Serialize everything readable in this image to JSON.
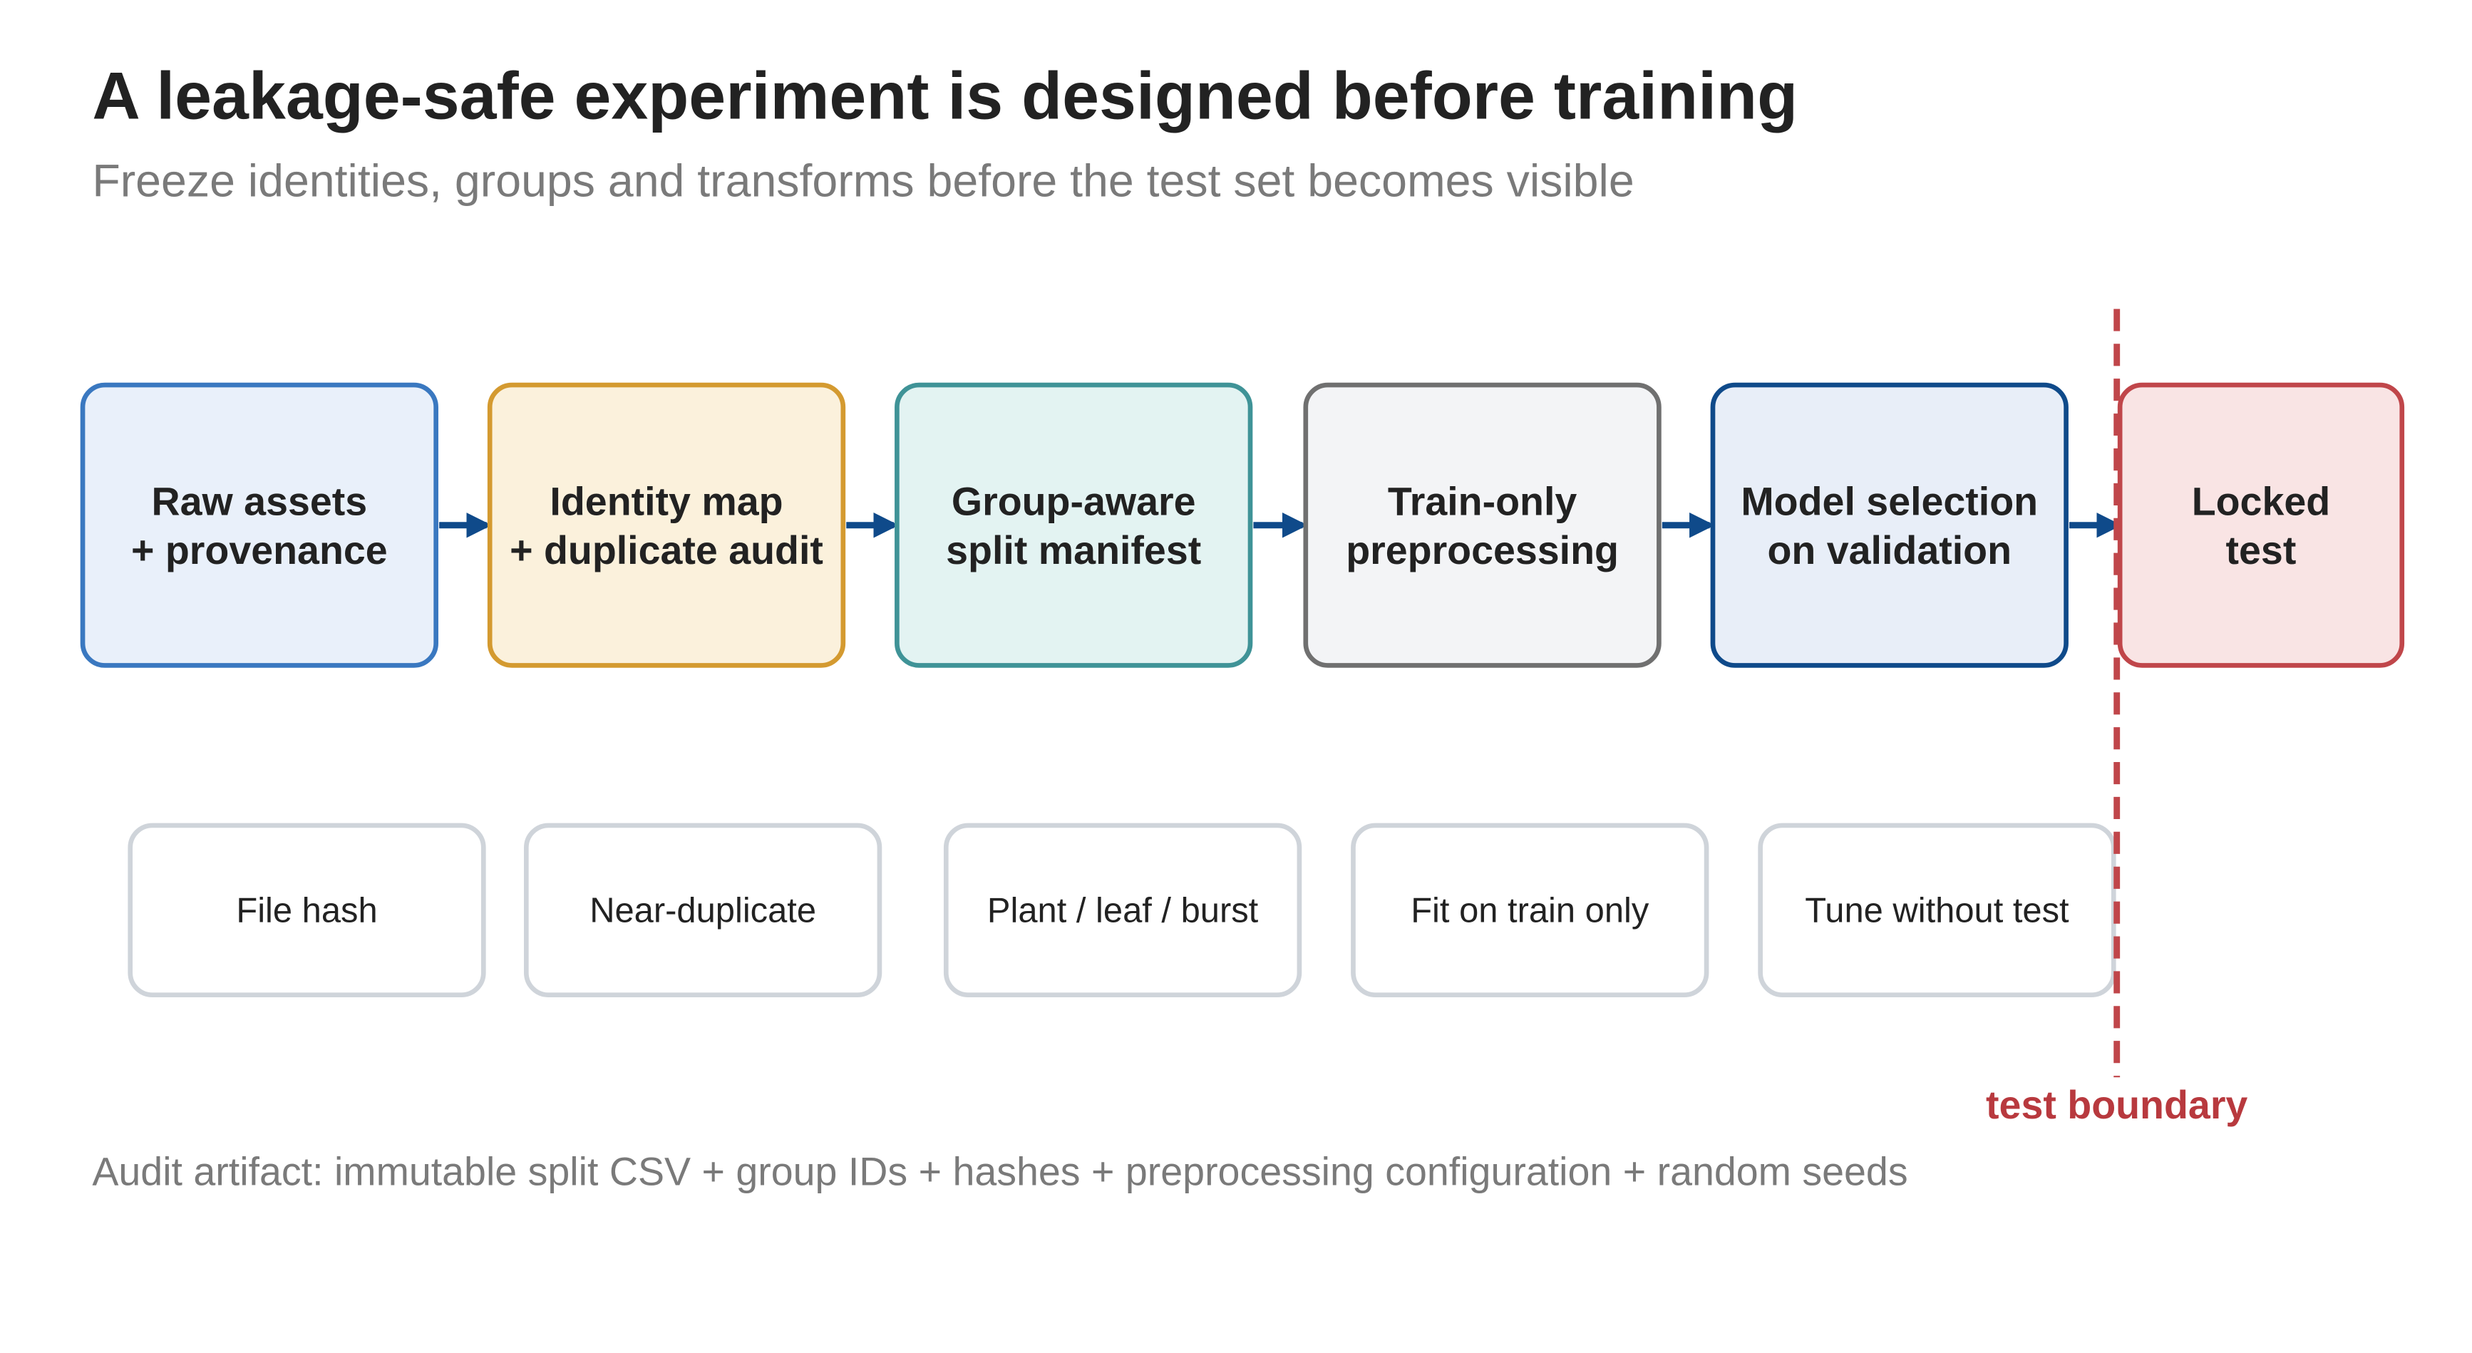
{
  "header": {
    "title": "A leakage-safe experiment is designed before training",
    "subtitle": "Freeze identities, groups and transforms before the test set becomes visible"
  },
  "steps": [
    {
      "lines": [
        "Raw assets",
        "+ provenance"
      ]
    },
    {
      "lines": [
        "Identity map",
        "+ duplicate audit"
      ]
    },
    {
      "lines": [
        "Group-aware",
        "split manifest"
      ]
    },
    {
      "lines": [
        "Train-only",
        "preprocessing"
      ]
    },
    {
      "lines": [
        "Model selection",
        "on validation"
      ]
    },
    {
      "lines": [
        "Locked",
        "test"
      ]
    }
  ],
  "notes": [
    "File hash",
    "Near-duplicate",
    "Plant / leaf / burst",
    "Fit on train only",
    "Tune without test"
  ],
  "boundary_label": "test boundary",
  "footer": "Audit artifact: immutable split CSV + group IDs + hashes + preprocessing configuration + random seeds"
}
